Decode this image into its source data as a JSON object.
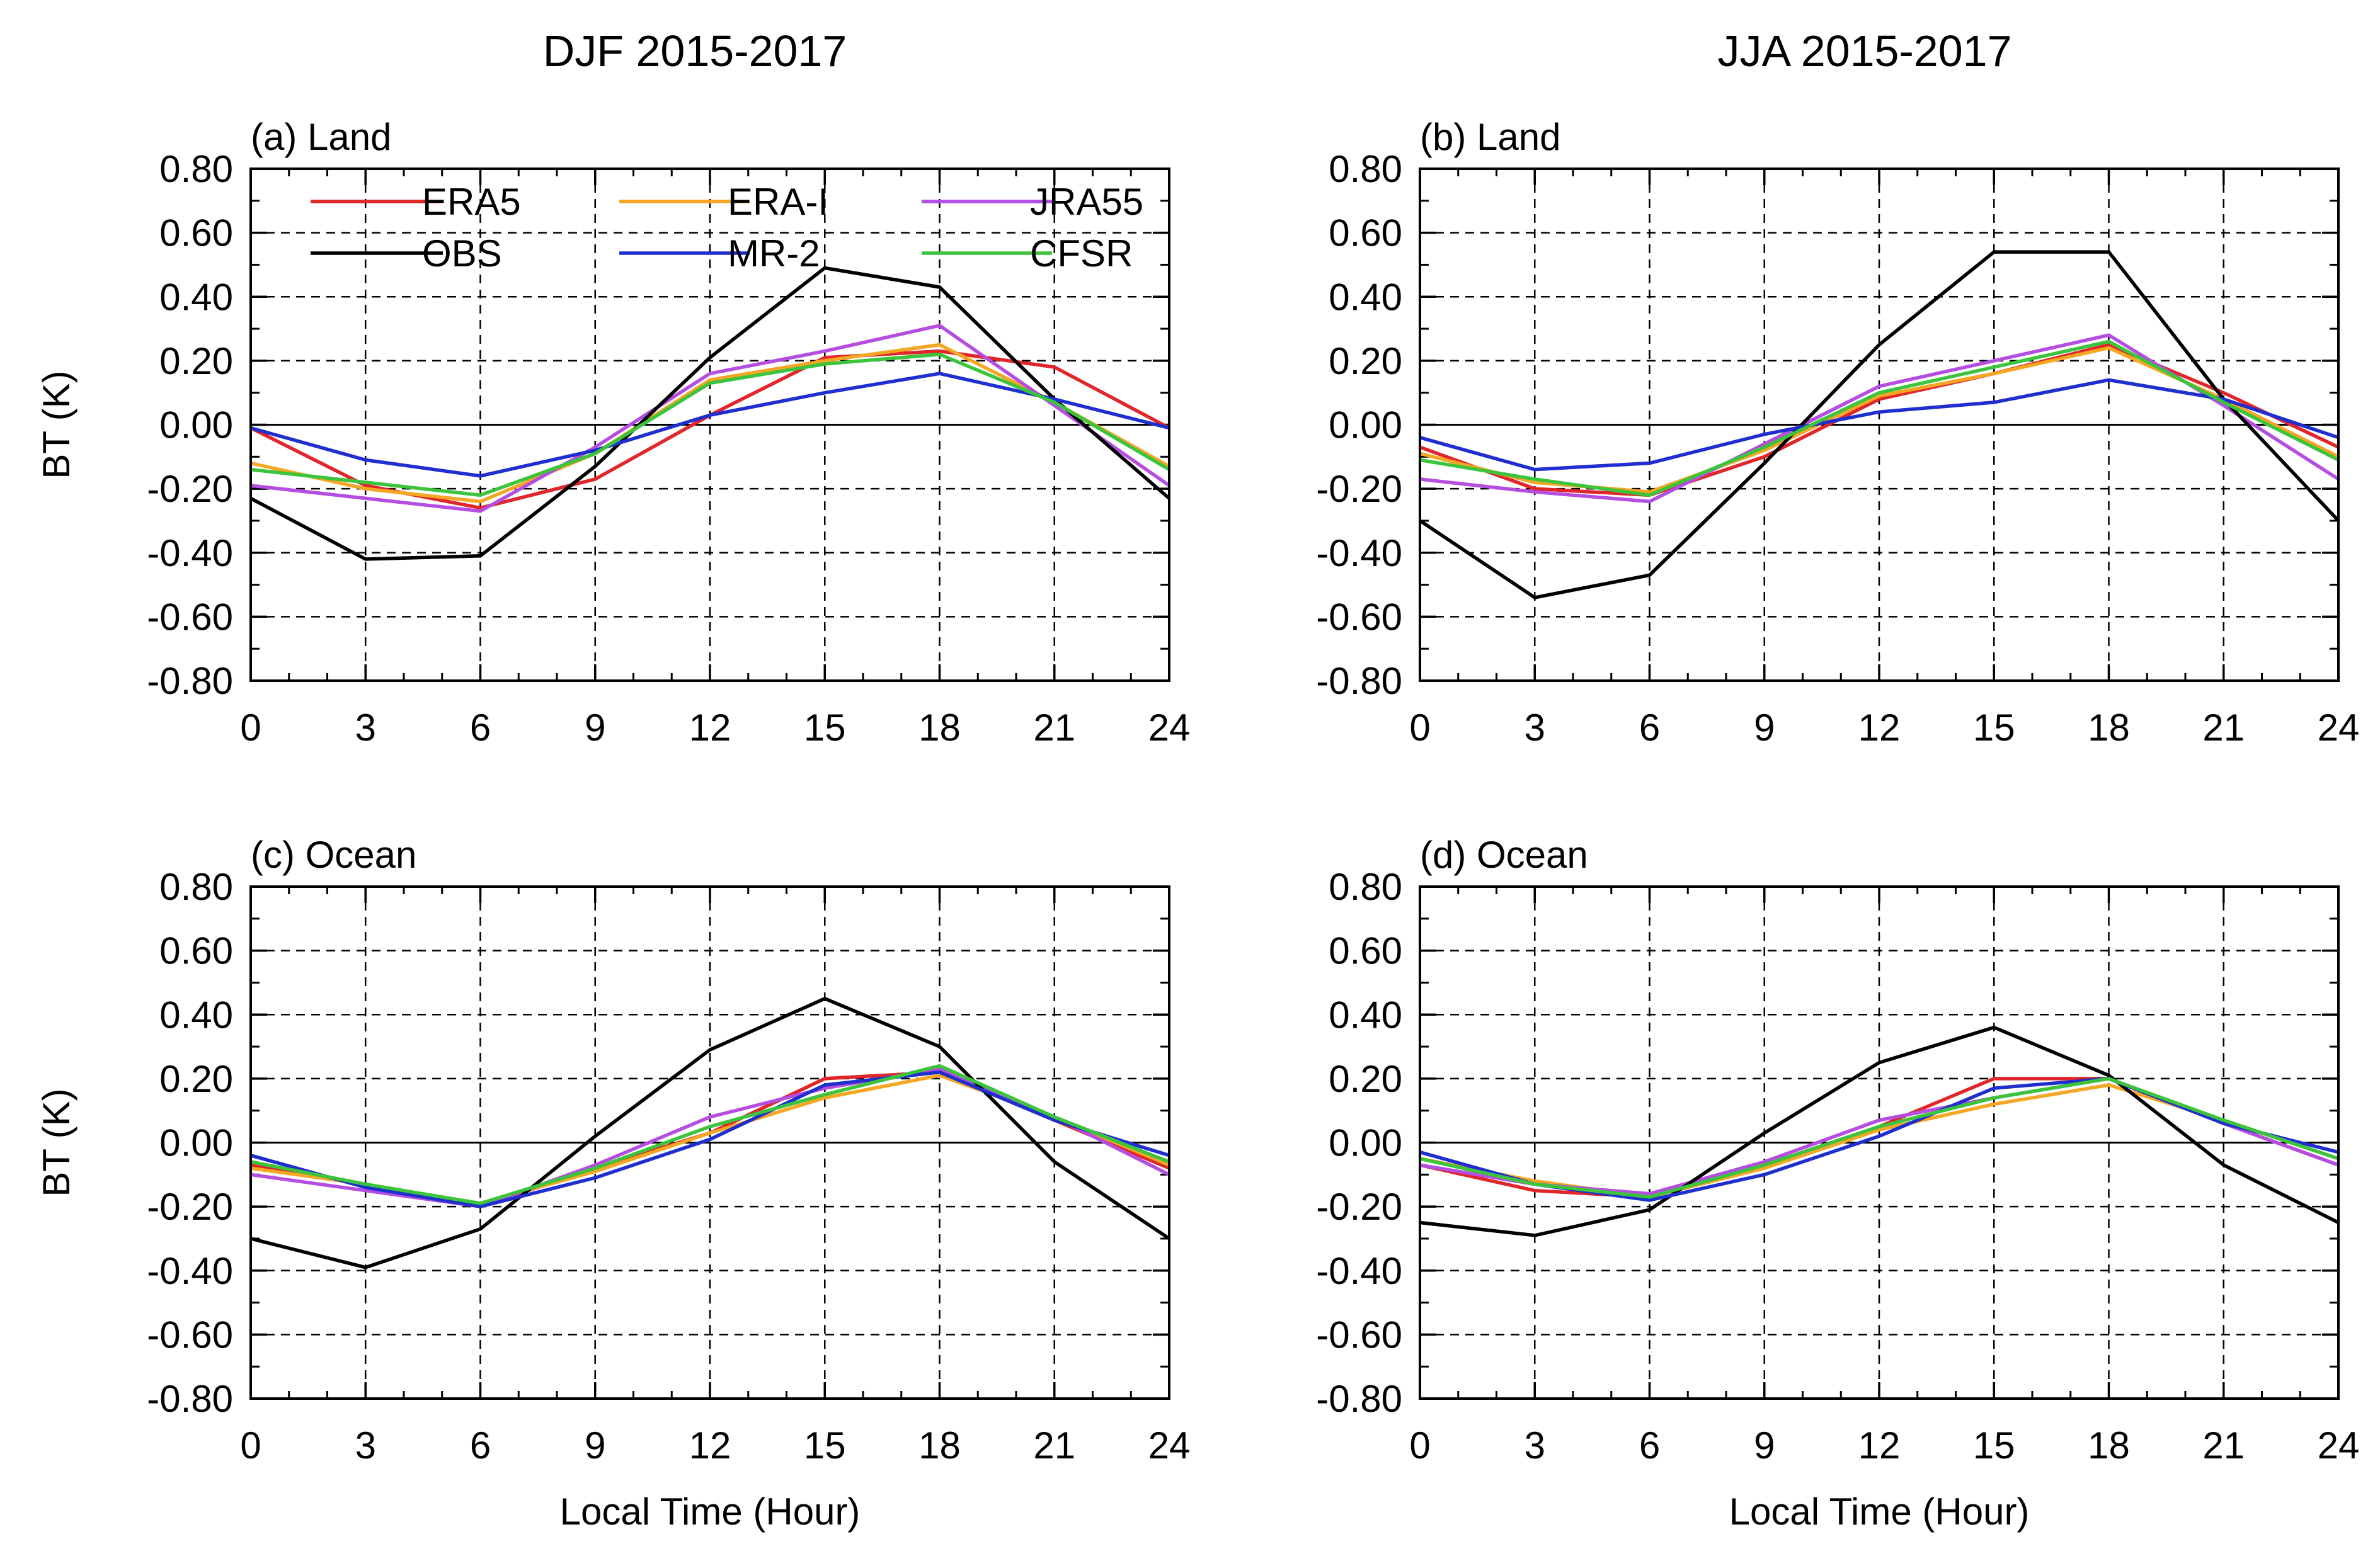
{
  "columns": [
    {
      "title": "DJF 2015-2017"
    },
    {
      "title": "JJA 2015-2017"
    }
  ],
  "colors": {
    "ERA5": "#e0262a",
    "ERA-I": "#f5a623",
    "JRA55": "#b44de0",
    "OBS": "#000000",
    "MR-2": "#1f2ecf",
    "CFSR": "#3cc43c"
  },
  "chart_data": [
    {
      "type": "line",
      "label": "(a) Land",
      "column": "DJF 2015-2017",
      "xlabel": "",
      "ylabel": "BT (K)",
      "xlim": [
        0,
        24
      ],
      "ylim": [
        -0.8,
        0.8
      ],
      "x": [
        0,
        3,
        6,
        9,
        12,
        15,
        18,
        21,
        24
      ],
      "xticks": [
        "0",
        "3",
        "6",
        "9",
        "12",
        "15",
        "18",
        "21",
        "24"
      ],
      "yticks": [
        "0.80",
        "0.60",
        "0.40",
        "0.20",
        "0.00",
        "-0.20",
        "-0.40",
        "-0.60",
        "-0.80"
      ],
      "grid": true,
      "legend": "top-left",
      "series": [
        {
          "name": "ERA5",
          "values": [
            -0.01,
            -0.19,
            -0.26,
            -0.17,
            0.03,
            0.21,
            0.23,
            0.18,
            -0.01
          ]
        },
        {
          "name": "ERA-I",
          "values": [
            -0.12,
            -0.2,
            -0.24,
            -0.09,
            0.14,
            0.2,
            0.25,
            0.07,
            -0.13
          ]
        },
        {
          "name": "JRA55",
          "values": [
            -0.19,
            -0.23,
            -0.27,
            -0.07,
            0.16,
            0.23,
            0.31,
            0.06,
            -0.19
          ]
        },
        {
          "name": "OBS",
          "values": [
            -0.23,
            -0.42,
            -0.41,
            -0.13,
            0.21,
            0.49,
            0.43,
            0.08,
            -0.23
          ]
        },
        {
          "name": "MR-2",
          "values": [
            -0.01,
            -0.11,
            -0.16,
            -0.08,
            0.03,
            0.1,
            0.16,
            0.08,
            -0.01
          ]
        },
        {
          "name": "CFSR",
          "values": [
            -0.14,
            -0.18,
            -0.22,
            -0.09,
            0.13,
            0.19,
            0.22,
            0.07,
            -0.14
          ]
        }
      ]
    },
    {
      "type": "line",
      "label": "(b) Land",
      "column": "JJA 2015-2017",
      "xlabel": "",
      "ylabel": "",
      "xlim": [
        0,
        24
      ],
      "ylim": [
        -0.8,
        0.8
      ],
      "x": [
        0,
        3,
        6,
        9,
        12,
        15,
        18,
        21,
        24
      ],
      "xticks": [
        "0",
        "3",
        "6",
        "9",
        "12",
        "15",
        "18",
        "21",
        "24"
      ],
      "yticks": [
        "0.80",
        "0.60",
        "0.40",
        "0.20",
        "0.00",
        "-0.20",
        "-0.40",
        "-0.60",
        "-0.80"
      ],
      "grid": true,
      "series": [
        {
          "name": "ERA5",
          "values": [
            -0.07,
            -0.2,
            -0.22,
            -0.1,
            0.08,
            0.16,
            0.25,
            0.1,
            -0.07
          ]
        },
        {
          "name": "ERA-I",
          "values": [
            -0.09,
            -0.18,
            -0.21,
            -0.08,
            0.09,
            0.16,
            0.24,
            0.08,
            -0.1
          ]
        },
        {
          "name": "JRA55",
          "values": [
            -0.17,
            -0.21,
            -0.24,
            -0.06,
            0.12,
            0.2,
            0.28,
            0.06,
            -0.17
          ]
        },
        {
          "name": "OBS",
          "values": [
            -0.3,
            -0.54,
            -0.47,
            -0.12,
            0.25,
            0.54,
            0.54,
            0.08,
            -0.3
          ]
        },
        {
          "name": "MR-2",
          "values": [
            -0.04,
            -0.14,
            -0.12,
            -0.03,
            0.04,
            0.07,
            0.14,
            0.08,
            -0.04
          ]
        },
        {
          "name": "CFSR",
          "values": [
            -0.11,
            -0.17,
            -0.22,
            -0.07,
            0.1,
            0.18,
            0.26,
            0.07,
            -0.11
          ]
        }
      ]
    },
    {
      "type": "line",
      "label": "(c) Ocean",
      "column": "DJF 2015-2017",
      "xlabel": "Local Time (Hour)",
      "ylabel": "BT (K)",
      "xlim": [
        0,
        24
      ],
      "ylim": [
        -0.8,
        0.8
      ],
      "x": [
        0,
        3,
        6,
        9,
        12,
        15,
        18,
        21,
        24
      ],
      "xticks": [
        "0",
        "3",
        "6",
        "9",
        "12",
        "15",
        "18",
        "21",
        "24"
      ],
      "yticks": [
        "0.80",
        "0.60",
        "0.40",
        "0.20",
        "0.00",
        "-0.20",
        "-0.40",
        "-0.60",
        "-0.80"
      ],
      "grid": true,
      "series": [
        {
          "name": "ERA5",
          "values": [
            -0.07,
            -0.13,
            -0.2,
            -0.08,
            0.03,
            0.2,
            0.22,
            0.07,
            -0.08
          ]
        },
        {
          "name": "ERA-I",
          "values": [
            -0.08,
            -0.13,
            -0.19,
            -0.09,
            0.03,
            0.14,
            0.21,
            0.08,
            -0.07
          ]
        },
        {
          "name": "JRA55",
          "values": [
            -0.1,
            -0.15,
            -0.2,
            -0.07,
            0.08,
            0.17,
            0.23,
            0.08,
            -0.1
          ]
        },
        {
          "name": "OBS",
          "values": [
            -0.3,
            -0.39,
            -0.27,
            0.02,
            0.29,
            0.45,
            0.3,
            -0.06,
            -0.3
          ]
        },
        {
          "name": "MR-2",
          "values": [
            -0.04,
            -0.14,
            -0.2,
            -0.11,
            0.01,
            0.18,
            0.22,
            0.07,
            -0.04
          ]
        },
        {
          "name": "CFSR",
          "values": [
            -0.06,
            -0.13,
            -0.19,
            -0.08,
            0.05,
            0.15,
            0.24,
            0.08,
            -0.06
          ]
        }
      ]
    },
    {
      "type": "line",
      "label": "(d) Ocean",
      "column": "JJA 2015-2017",
      "xlabel": "Local Time (Hour)",
      "ylabel": "",
      "xlim": [
        0,
        24
      ],
      "ylim": [
        -0.8,
        0.8
      ],
      "x": [
        0,
        3,
        6,
        9,
        12,
        15,
        18,
        21,
        24
      ],
      "xticks": [
        "0",
        "3",
        "6",
        "9",
        "12",
        "15",
        "18",
        "21",
        "24"
      ],
      "yticks": [
        "0.80",
        "0.60",
        "0.40",
        "0.20",
        "0.00",
        "-0.20",
        "-0.40",
        "-0.60",
        "-0.80"
      ],
      "grid": true,
      "series": [
        {
          "name": "ERA5",
          "values": [
            -0.07,
            -0.15,
            -0.17,
            -0.07,
            0.05,
            0.2,
            0.2,
            0.06,
            -0.07
          ]
        },
        {
          "name": "ERA-I",
          "values": [
            -0.05,
            -0.12,
            -0.17,
            -0.08,
            0.04,
            0.12,
            0.18,
            0.07,
            -0.05
          ]
        },
        {
          "name": "JRA55",
          "values": [
            -0.07,
            -0.13,
            -0.16,
            -0.06,
            0.07,
            0.14,
            0.2,
            0.06,
            -0.07
          ]
        },
        {
          "name": "OBS",
          "values": [
            -0.25,
            -0.29,
            -0.21,
            0.03,
            0.25,
            0.36,
            0.21,
            -0.07,
            -0.25
          ]
        },
        {
          "name": "MR-2",
          "values": [
            -0.03,
            -0.13,
            -0.18,
            -0.1,
            0.02,
            0.17,
            0.2,
            0.06,
            -0.03
          ]
        },
        {
          "name": "CFSR",
          "values": [
            -0.05,
            -0.13,
            -0.17,
            -0.07,
            0.05,
            0.14,
            0.2,
            0.07,
            -0.05
          ]
        }
      ]
    }
  ]
}
